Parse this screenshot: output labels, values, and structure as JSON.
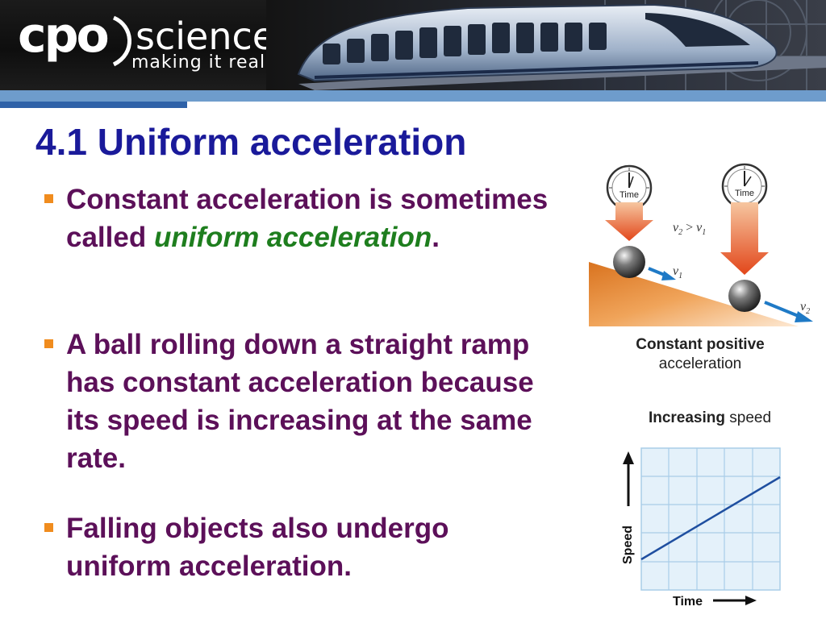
{
  "banner": {
    "logo_cpo": "cpo",
    "logo_science": "science",
    "tagline": "making it real."
  },
  "slide": {
    "title": "4.1 Uniform acceleration",
    "bullets": [
      {
        "before": "Constant acceleration is sometimes called ",
        "emph": "uniform acceleration",
        "after": "."
      },
      {
        "text": "A ball rolling down a straight ramp has constant acceleration because its speed is increasing at the same rate."
      },
      {
        "text": "Falling objects also undergo uniform acceleration."
      }
    ]
  },
  "figure_ramp": {
    "clock_label_1": "Time",
    "clock_label_2": "Time",
    "relation_v": "v",
    "relation_sub2": "2",
    "relation_gt": " > ",
    "relation_sub1": "1",
    "v1_label": "v",
    "v1_sub": "1",
    "v2_label": "v",
    "v2_sub": "2",
    "caption_bold": "Constant positive",
    "caption_normal": "acceleration"
  },
  "figure_graph": {
    "title_bold": "Increasing",
    "title_normal": " speed",
    "y_axis_label": "Speed",
    "x_axis_label": "Time"
  },
  "colors": {
    "title": "#1a1a9a",
    "bullet_text": "#5c1059",
    "emphasis": "#1e7e1e",
    "bullet_marker": "#f08c1e",
    "ramp": "#e8923a",
    "arrow_orange": "#e8541e",
    "velocity_arrow": "#1f7ac6",
    "graph_line": "#1f4fa0",
    "graph_grid": "#a9cde8",
    "graph_bg": "#e4f1fa"
  }
}
